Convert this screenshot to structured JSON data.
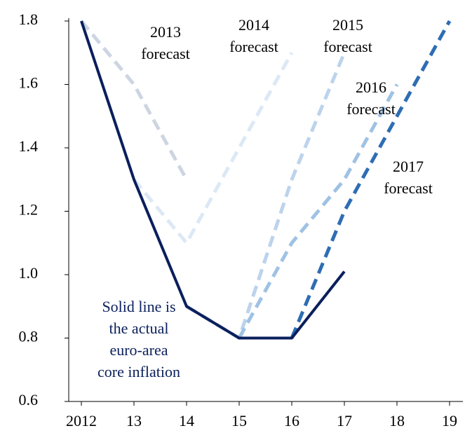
{
  "chart_data": {
    "type": "line",
    "categories": [
      "2012",
      "13",
      "14",
      "15",
      "16",
      "17",
      "18",
      "19"
    ],
    "series": [
      {
        "name": "2013 forecast",
        "color": "#cdd4e2",
        "dashed": true,
        "values": [
          1.8,
          1.6,
          1.3,
          null,
          null,
          null,
          null,
          null
        ]
      },
      {
        "name": "2014 forecast",
        "color": "#dce8f5",
        "dashed": true,
        "values": [
          null,
          1.3,
          1.1,
          1.4,
          1.7,
          null,
          null,
          null
        ]
      },
      {
        "name": "2015 forecast",
        "color": "#bcd3ec",
        "dashed": true,
        "values": [
          null,
          null,
          0.9,
          0.8,
          1.3,
          1.7,
          null,
          null
        ]
      },
      {
        "name": "2016 forecast",
        "color": "#9fc2e4",
        "dashed": true,
        "values": [
          null,
          null,
          null,
          0.8,
          1.1,
          1.3,
          1.6,
          null
        ]
      },
      {
        "name": "2017 forecast",
        "color": "#2e6db3",
        "dashed": true,
        "values": [
          null,
          null,
          null,
          null,
          0.8,
          1.2,
          1.5,
          1.8
        ]
      },
      {
        "name": "Actual",
        "color": "#0a1f5c",
        "dashed": false,
        "values": [
          1.8,
          1.3,
          0.9,
          0.8,
          0.8,
          1.01,
          null,
          null
        ]
      }
    ],
    "series_labels": [
      [
        "2013",
        "forecast"
      ],
      [
        "2014",
        "forecast"
      ],
      [
        "2015",
        "forecast"
      ],
      [
        "2016",
        "forecast"
      ],
      [
        "2017",
        "forecast"
      ]
    ],
    "annotation": [
      "Solid line is",
      "the actual",
      "euro-area",
      "core inflation"
    ],
    "ylim": [
      0.6,
      1.8
    ],
    "yticks": [
      0.6,
      0.8,
      {
        "value": 1.0,
        "label": "1.0"
      },
      1.2,
      1.4,
      1.6,
      1.8
    ]
  }
}
